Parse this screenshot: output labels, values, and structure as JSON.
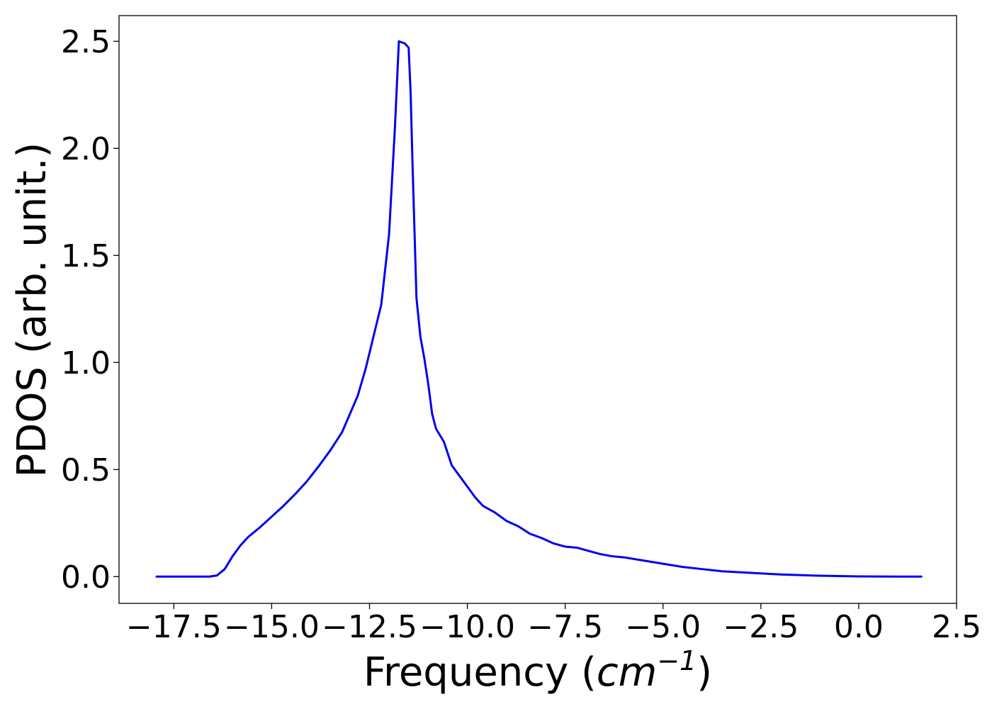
{
  "chart_data": {
    "type": "line",
    "title": "",
    "xlabel": {
      "prefix": "Frequency (",
      "unit": "cm",
      "exponent": "−1",
      "suffix": ")"
    },
    "ylabel": "PDOS (arb. unit.)",
    "xlim": [
      -18.9,
      2.5
    ],
    "ylim": [
      -0.125,
      2.62
    ],
    "grid": false,
    "legend": "none",
    "x_ticks": [
      -17.5,
      -15.0,
      -12.5,
      -10.0,
      -7.5,
      -5.0,
      -2.5,
      0.0,
      2.5
    ],
    "x_tick_labels": [
      "−17.5",
      "−15.0",
      "−12.5",
      "−10.0",
      "−7.5",
      "−5.0",
      "−2.5",
      "0.0",
      "2.5"
    ],
    "y_ticks": [
      0.0,
      0.5,
      1.0,
      1.5,
      2.0,
      2.5
    ],
    "y_tick_labels": [
      "0.0",
      "0.5",
      "1.0",
      "1.5",
      "2.0",
      "2.5"
    ],
    "series": [
      {
        "color": "#0000ee",
        "x": [
          -17.94,
          -17.0,
          -16.6,
          -16.4,
          -16.2,
          -16.0,
          -15.8,
          -15.6,
          -15.3,
          -15.0,
          -14.7,
          -14.4,
          -14.1,
          -13.8,
          -13.5,
          -13.2,
          -13.0,
          -12.8,
          -12.6,
          -12.4,
          -12.2,
          -12.0,
          -11.85,
          -11.75,
          -11.6,
          -11.5,
          -11.45,
          -11.4,
          -11.3,
          -11.2,
          -11.1,
          -11.0,
          -10.9,
          -10.8,
          -10.6,
          -10.4,
          -10.2,
          -10.0,
          -9.8,
          -9.6,
          -9.3,
          -9.0,
          -8.7,
          -8.4,
          -8.1,
          -7.8,
          -7.5,
          -7.2,
          -6.9,
          -6.6,
          -6.3,
          -6.0,
          -5.5,
          -5.0,
          -4.5,
          -4.0,
          -3.5,
          -3.0,
          -2.5,
          -2.0,
          -1.5,
          -1.0,
          0.0,
          1.0,
          1.6
        ],
        "y": [
          0.0,
          0.0,
          0.0,
          0.005,
          0.035,
          0.095,
          0.145,
          0.185,
          0.23,
          0.28,
          0.33,
          0.385,
          0.445,
          0.515,
          0.59,
          0.675,
          0.76,
          0.845,
          0.97,
          1.12,
          1.27,
          1.6,
          2.1,
          2.5,
          2.49,
          2.47,
          2.26,
          1.92,
          1.3,
          1.12,
          1.02,
          0.9,
          0.76,
          0.69,
          0.63,
          0.52,
          0.47,
          0.42,
          0.37,
          0.33,
          0.3,
          0.26,
          0.235,
          0.2,
          0.18,
          0.155,
          0.14,
          0.135,
          0.12,
          0.105,
          0.095,
          0.09,
          0.075,
          0.06,
          0.045,
          0.035,
          0.025,
          0.02,
          0.015,
          0.01,
          0.007,
          0.004,
          0.001,
          0.0,
          0.0
        ]
      }
    ]
  }
}
